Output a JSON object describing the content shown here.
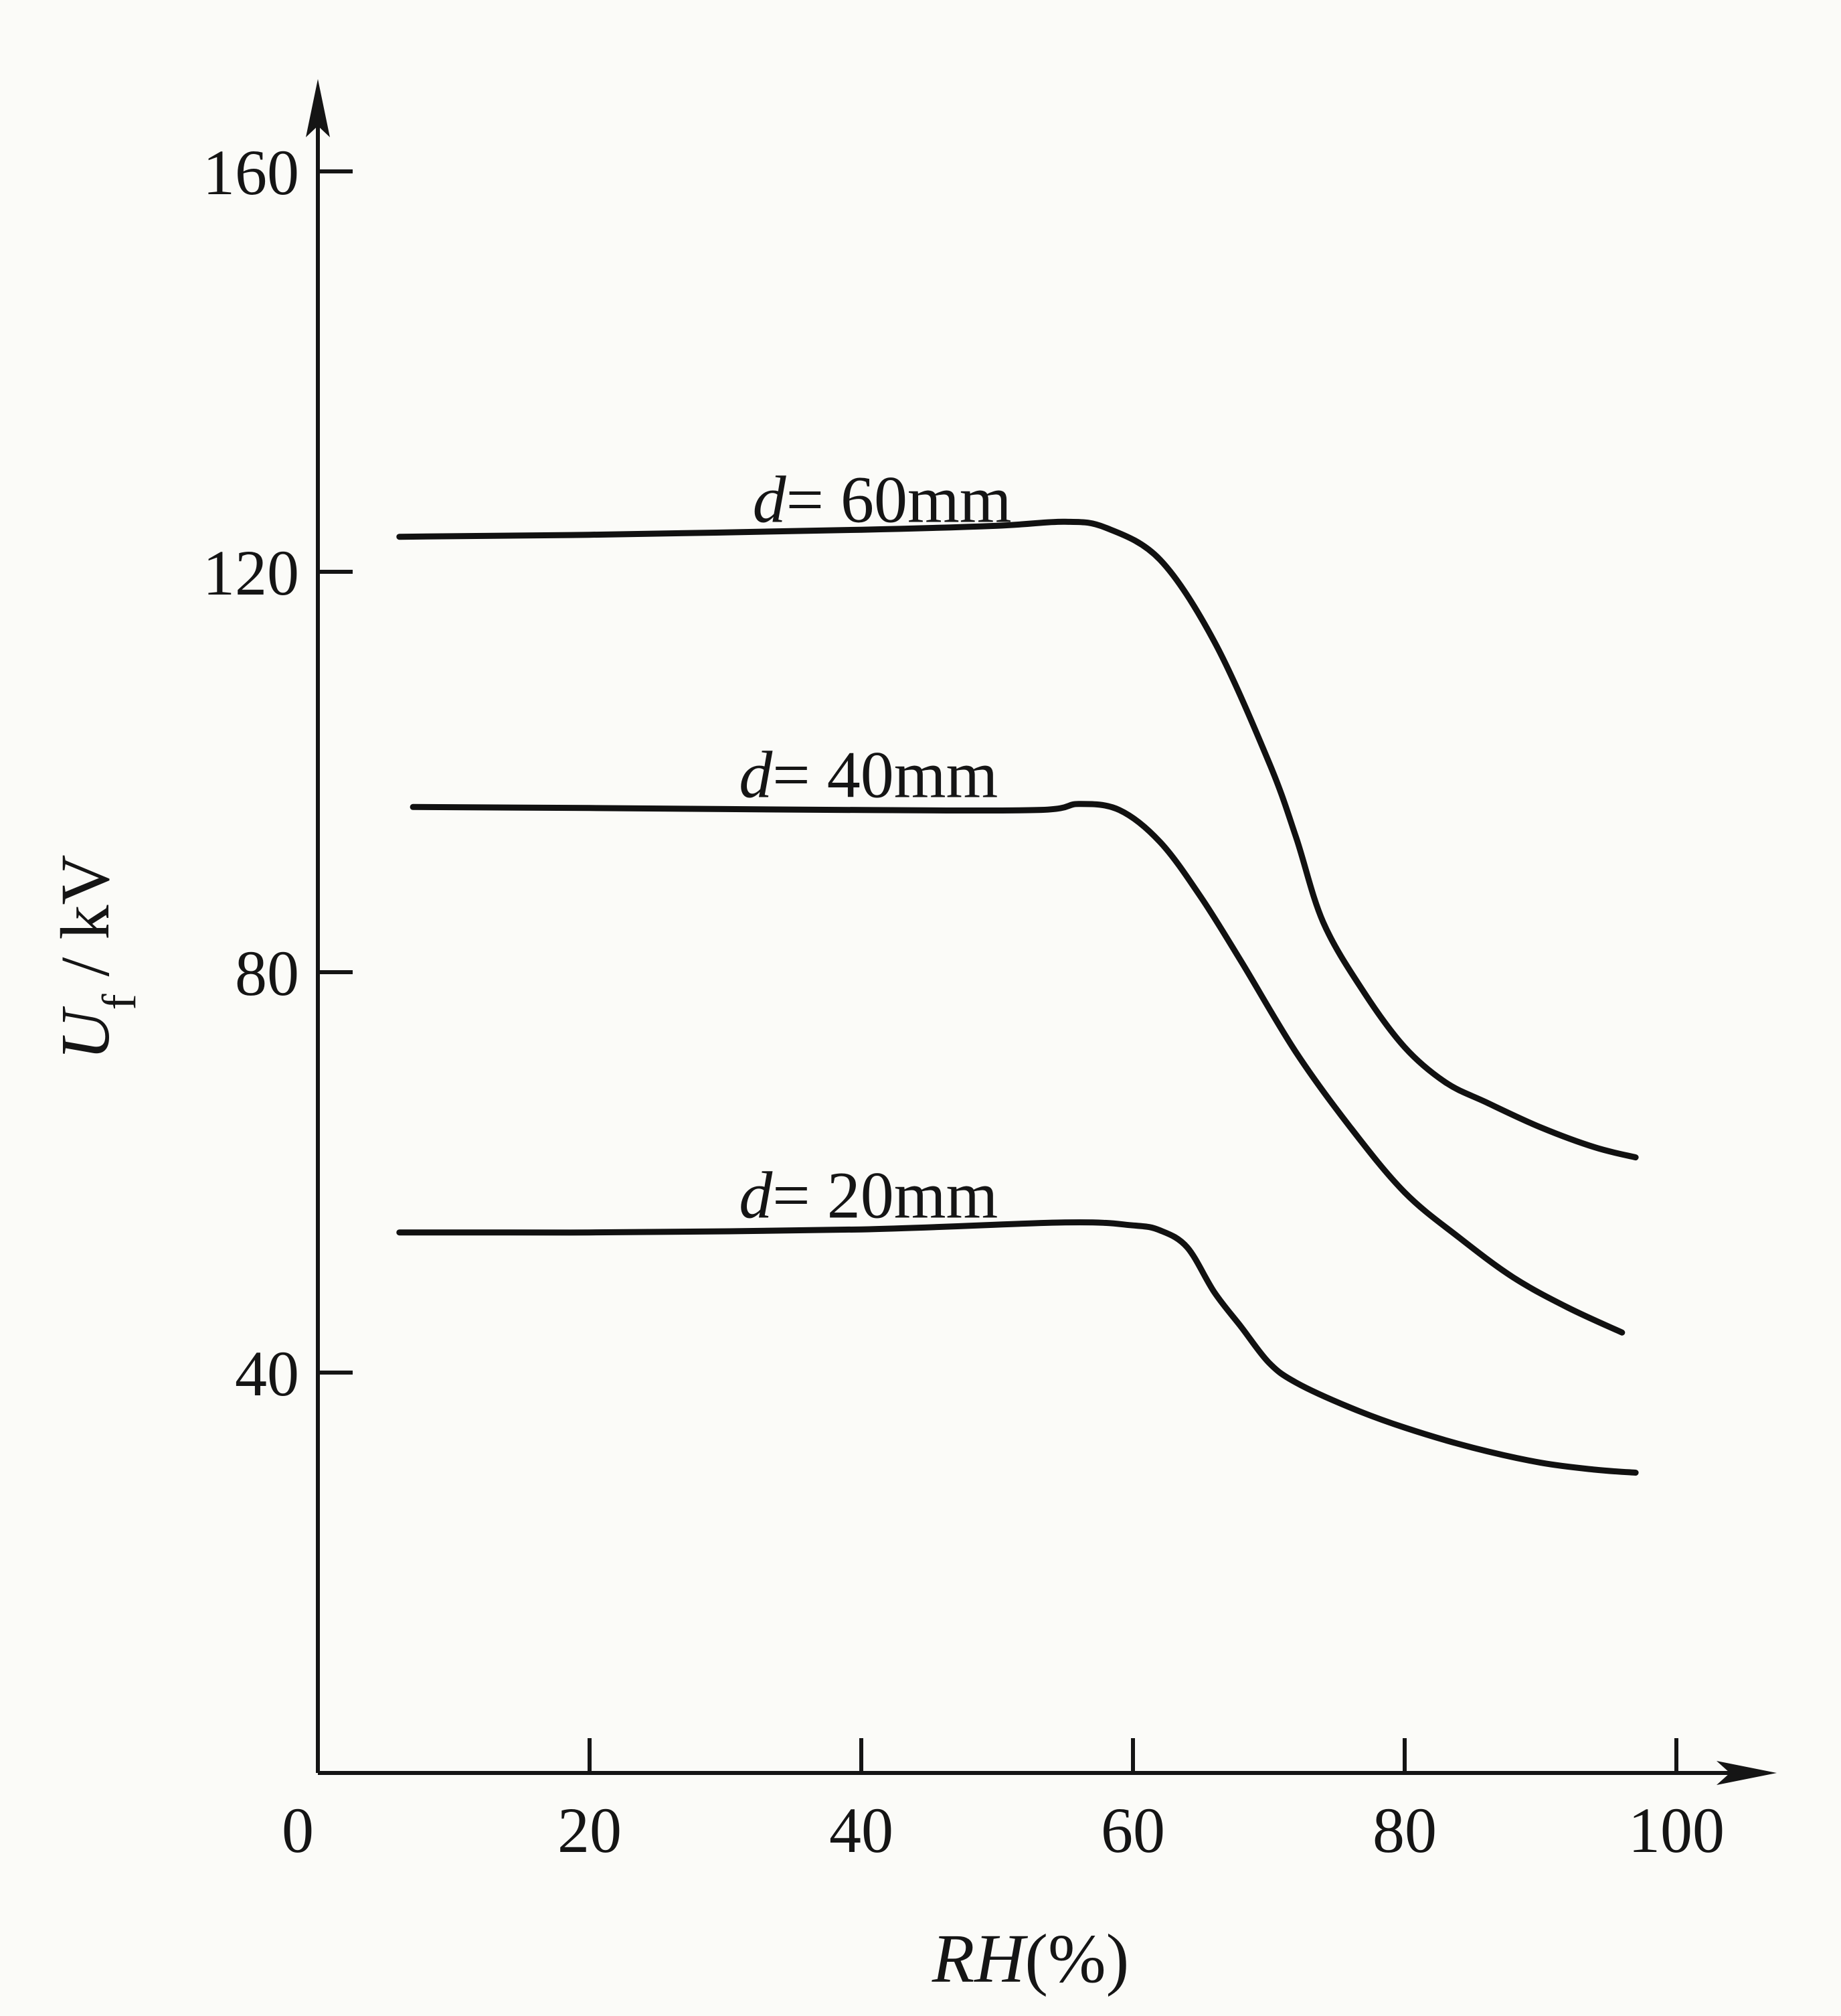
{
  "chart_data": {
    "type": "line",
    "title": "",
    "xlabel": {
      "var": "RH",
      "unit": "(%)"
    },
    "ylabel": {
      "var": "U",
      "sub": "f",
      "unit": " / kV"
    },
    "xlim": [
      0,
      105
    ],
    "ylim": [
      0,
      172
    ],
    "x_ticks": [
      "0",
      "20",
      "40",
      "60",
      "80",
      "100"
    ],
    "y_ticks": [
      "40",
      "80",
      "120",
      "160"
    ],
    "grid": false,
    "legend": "none",
    "line_color": "#111111",
    "series": [
      {
        "name": "d = 60mm",
        "label_var": "d",
        "label_rest": "= 60mm",
        "label_at": [
          32,
          125
        ],
        "x": [
          6,
          20,
          40,
          50,
          55,
          58,
          62,
          66,
          70,
          72,
          74,
          77,
          80,
          83,
          86,
          90,
          94,
          97
        ],
        "y": [
          123.5,
          123.7,
          124.2,
          124.6,
          125,
          124.4,
          121.2,
          113,
          101,
          93.5,
          85,
          78,
          72.5,
          69,
          67,
          64.5,
          62.5,
          61.5
        ]
      },
      {
        "name": "d = 40mm",
        "label_var": "d",
        "label_rest": "= 40mm",
        "label_at": [
          31,
          97.5
        ],
        "x": [
          7,
          20,
          40,
          53,
          56,
          59,
          62,
          65,
          68,
          72,
          76,
          80,
          84,
          88,
          92,
          96
        ],
        "y": [
          96.5,
          96.4,
          96.2,
          96.2,
          96.8,
          96.2,
          93,
          87.5,
          81,
          72,
          64.5,
          58,
          53.5,
          49.5,
          46.5,
          44
        ]
      },
      {
        "name": "d = 20mm",
        "label_var": "d",
        "label_rest": "= 20mm",
        "label_at": [
          31,
          55.5
        ],
        "x": [
          6,
          20,
          40,
          55,
          60,
          62,
          64,
          66,
          68,
          70,
          72,
          76,
          80,
          85,
          90,
          94,
          97
        ],
        "y": [
          54,
          54,
          54.3,
          55,
          54.7,
          54.2,
          52.5,
          48,
          44.5,
          41,
          39,
          36.5,
          34.5,
          32.5,
          31,
          30.3,
          30
        ]
      }
    ]
  }
}
